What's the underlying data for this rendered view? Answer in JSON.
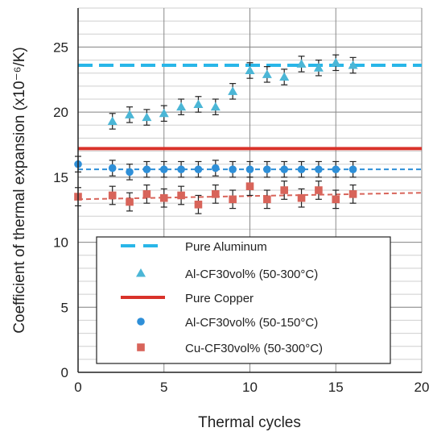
{
  "chart_data": {
    "type": "scatter",
    "xlabel": "Thermal cycles",
    "ylabel": "Coefficient of thermal expansion (x10⁻⁶/K)",
    "xlim": [
      0,
      20
    ],
    "ylim": [
      0,
      28
    ],
    "x_ticks": [
      "0",
      "5",
      "10",
      "15",
      "20"
    ],
    "y_ticks": [
      "0",
      "5",
      "10",
      "15",
      "20",
      "25"
    ],
    "grid": true,
    "legend_position": "lower-center",
    "reference_lines": [
      {
        "name": "Pure Aluminum",
        "y": 23.6,
        "style": "dashed",
        "color": "#29b6e8"
      },
      {
        "name": "Pure Copper",
        "y": 17.2,
        "style": "solid",
        "color": "#d9322a"
      }
    ],
    "series": [
      {
        "name": "Al-CF30vol% (50-300°C)",
        "marker": "triangle",
        "color": "#4bb6d6",
        "x": [
          2,
          3,
          4,
          5,
          6,
          7,
          8,
          9,
          10,
          11,
          12,
          13,
          14,
          15,
          16
        ],
        "y": [
          19.3,
          19.8,
          19.6,
          19.9,
          20.4,
          20.6,
          20.4,
          21.6,
          23.2,
          22.9,
          22.7,
          23.7,
          23.4,
          23.8,
          23.6
        ],
        "err": 0.6
      },
      {
        "name": "Al-CF30vol% (50-150°C)",
        "marker": "circle",
        "color": "#2e8fd8",
        "x": [
          0,
          2,
          3,
          4,
          5,
          6,
          7,
          8,
          9,
          10,
          11,
          12,
          13,
          14,
          15,
          16
        ],
        "y": [
          16.0,
          15.7,
          15.4,
          15.6,
          15.6,
          15.6,
          15.6,
          15.7,
          15.6,
          15.6,
          15.6,
          15.6,
          15.6,
          15.6,
          15.6,
          15.6
        ],
        "err": 0.6,
        "trend": [
          15.6,
          15.6
        ]
      },
      {
        "name": "Cu-CF30vol% (50-300°C)",
        "marker": "square",
        "color": "#d8645a",
        "x": [
          0,
          2,
          3,
          4,
          5,
          6,
          7,
          8,
          9,
          10,
          11,
          12,
          13,
          14,
          15,
          16
        ],
        "y": [
          13.5,
          13.6,
          13.1,
          13.7,
          13.4,
          13.6,
          12.9,
          13.7,
          13.3,
          14.3,
          13.3,
          14.0,
          13.4,
          14.0,
          13.3,
          13.7
        ],
        "err": 0.7,
        "trend": [
          13.3,
          13.8
        ]
      }
    ],
    "legend": [
      {
        "label": "Pure Aluminum",
        "symbol": "dashed-line",
        "color": "#29b6e8"
      },
      {
        "label": "Al-CF30vol% (50-300°C)",
        "symbol": "triangle",
        "color": "#4bb6d6"
      },
      {
        "label": "Pure Copper",
        "symbol": "solid-line",
        "color": "#d9322a"
      },
      {
        "label": "Al-CF30vol% (50-150°C)",
        "symbol": "circle",
        "color": "#2e8fd8"
      },
      {
        "label": "Cu-CF30vol% (50-300°C)",
        "symbol": "square",
        "color": "#d8645a"
      }
    ]
  }
}
